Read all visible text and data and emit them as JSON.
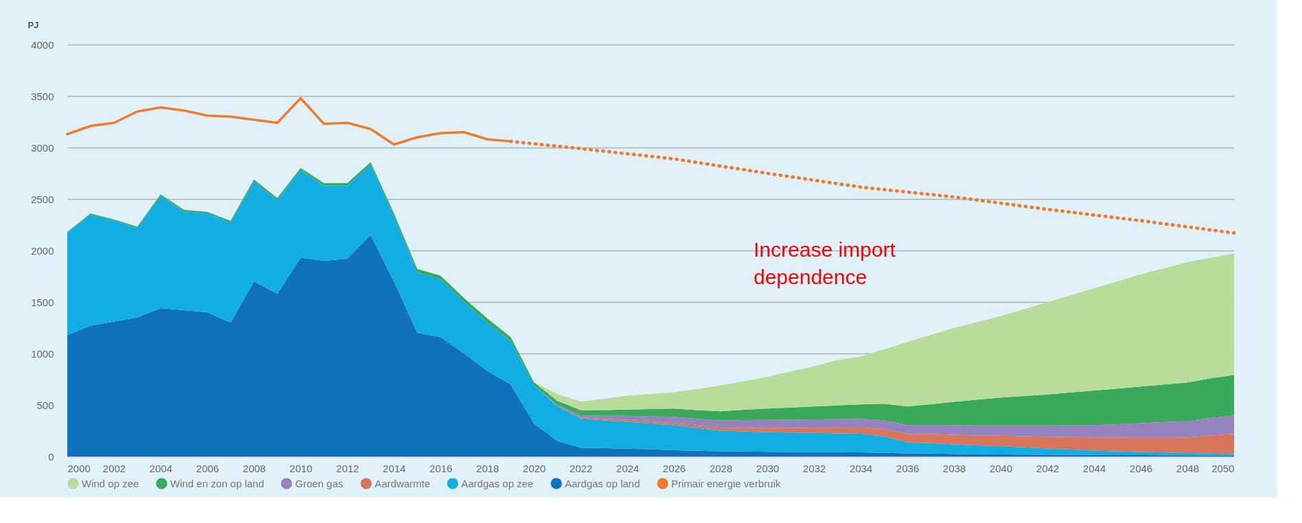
{
  "chart_data": {
    "type": "area",
    "stacked": true,
    "ylabel": "PJ",
    "x": [
      2000,
      2001,
      2002,
      2003,
      2004,
      2005,
      2006,
      2007,
      2008,
      2009,
      2010,
      2011,
      2012,
      2013,
      2014,
      2015,
      2016,
      2017,
      2018,
      2019,
      2020,
      2021,
      2022,
      2023,
      2024,
      2025,
      2026,
      2027,
      2028,
      2029,
      2030,
      2031,
      2032,
      2033,
      2034,
      2035,
      2036,
      2037,
      2038,
      2039,
      2040,
      2041,
      2042,
      2043,
      2044,
      2045,
      2046,
      2047,
      2048,
      2049,
      2050
    ],
    "series": [
      {
        "name": "Aardgas op land",
        "color": "#1072bd",
        "values": [
          1180,
          1270,
          1310,
          1350,
          1440,
          1420,
          1400,
          1300,
          1700,
          1580,
          1930,
          1900,
          1920,
          2150,
          1700,
          1200,
          1160,
          1000,
          830,
          700,
          320,
          150,
          85,
          80,
          75,
          70,
          60,
          55,
          50,
          48,
          45,
          43,
          42,
          41,
          40,
          35,
          30,
          28,
          25,
          22,
          20,
          18,
          17,
          16,
          15,
          14,
          13,
          12,
          11,
          10,
          10
        ]
      },
      {
        "name": "Aardgas op zee",
        "color": "#12aee3",
        "values": [
          990,
          1080,
          980,
          870,
          1090,
          960,
          960,
          970,
          970,
          910,
          850,
          730,
          710,
          680,
          630,
          590,
          560,
          500,
          470,
          420,
          370,
          340,
          285,
          270,
          262,
          250,
          243,
          220,
          200,
          195,
          190,
          188,
          186,
          183,
          180,
          160,
          105,
          100,
          92,
          85,
          80,
          70,
          60,
          50,
          42,
          35,
          30,
          26,
          22,
          18,
          14
        ]
      },
      {
        "name": "Aardwarmte",
        "color": "#d9755a",
        "values": [
          0,
          0,
          0,
          0,
          0,
          0,
          0,
          0,
          0,
          0,
          0,
          0,
          0,
          0,
          0,
          0,
          0,
          0,
          0,
          0,
          0,
          5,
          10,
          15,
          18,
          20,
          22,
          25,
          28,
          35,
          40,
          45,
          50,
          55,
          60,
          72,
          84,
          88,
          93,
          97,
          102,
          108,
          115,
          122,
          128,
          134,
          140,
          145,
          150,
          175,
          195
        ]
      },
      {
        "name": "Groen gas",
        "color": "#9682be",
        "values": [
          0,
          0,
          0,
          0,
          0,
          0,
          0,
          0,
          0,
          0,
          0,
          0,
          0,
          0,
          0,
          0,
          0,
          0,
          0,
          0,
          0,
          5,
          20,
          30,
          40,
          50,
          60,
          65,
          70,
          75,
          80,
          81,
          82,
          83,
          84,
          85,
          86,
          90,
          95,
          98,
          100,
          105,
          110,
          115,
          120,
          130,
          140,
          150,
          160,
          170,
          180
        ]
      },
      {
        "name": "Wind en zon op land",
        "color": "#3aa95a",
        "values": [
          10,
          10,
          12,
          12,
          15,
          15,
          15,
          18,
          20,
          20,
          22,
          25,
          25,
          28,
          30,
          32,
          35,
          38,
          40,
          40,
          30,
          40,
          50,
          55,
          60,
          70,
          80,
          85,
          90,
          100,
          110,
          118,
          125,
          133,
          141,
          160,
          180,
          200,
          225,
          250,
          270,
          285,
          300,
          318,
          335,
          345,
          355,
          365,
          375,
          385,
          392
        ]
      },
      {
        "name": "Wind op zee",
        "color": "#b9dc9a",
        "values": [
          0,
          0,
          0,
          0,
          0,
          0,
          0,
          0,
          0,
          0,
          0,
          0,
          0,
          0,
          0,
          0,
          0,
          0,
          0,
          0,
          0,
          66,
          82,
          110,
          135,
          147,
          158,
          205,
          252,
          277,
          309,
          350,
          390,
          440,
          465,
          528,
          626,
          674,
          716,
          753,
          792,
          844,
          896,
          944,
          993,
          1042,
          1090,
          1129,
          1168,
          1172,
          1179
        ]
      },
      {
        "name": "Primair energie verbruik",
        "type": "line",
        "color": "#f07b2b",
        "line_style": "solid",
        "x": [
          2000,
          2001,
          2002,
          2003,
          2004,
          2005,
          2006,
          2007,
          2008,
          2009,
          2010,
          2011,
          2012,
          2013,
          2014,
          2015,
          2016,
          2017,
          2018,
          2019
        ],
        "values": [
          3130,
          3210,
          3240,
          3350,
          3390,
          3360,
          3310,
          3300,
          3270,
          3240,
          3480,
          3230,
          3240,
          3180,
          3030,
          3100,
          3140,
          3150,
          3080,
          3060
        ]
      },
      {
        "type": "line",
        "color": "#f07b2b",
        "line_style": "dotted",
        "x": [
          2019,
          2022,
          2026,
          2030,
          2034,
          2038,
          2042,
          2046,
          2050
        ],
        "values": [
          3060,
          2990,
          2890,
          2750,
          2616,
          2520,
          2400,
          2290,
          2170
        ]
      }
    ],
    "xlim": [
      2000,
      2050
    ],
    "xticks": [
      2000,
      2002,
      2004,
      2006,
      2008,
      2010,
      2012,
      2014,
      2016,
      2018,
      2020,
      2022,
      2024,
      2026,
      2028,
      2030,
      2032,
      2034,
      2036,
      2038,
      2040,
      2042,
      2044,
      2046,
      2048,
      2050
    ],
    "ylim": [
      0,
      4000
    ],
    "yticks": [
      0,
      500,
      1000,
      1500,
      2000,
      2500,
      3000,
      3500,
      4000
    ],
    "grid": "y",
    "legend": "bottom",
    "annotations": [
      "Increase import\ndependence"
    ]
  }
}
